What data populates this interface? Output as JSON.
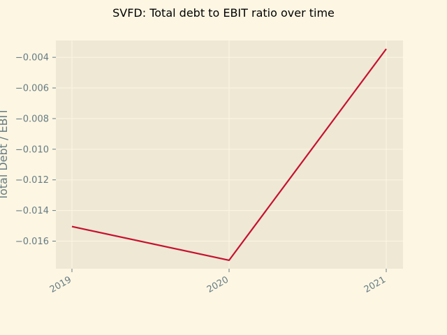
{
  "chart_data": {
    "type": "line",
    "title": "SVFD: Total debt to EBIT ratio over time",
    "xlabel": "",
    "ylabel": "Total Debt / EBIT",
    "categories": [
      "2019",
      "2020",
      "2021"
    ],
    "series": [
      {
        "values": [
          -0.01505,
          -0.01725,
          -0.00345
        ],
        "color": "#c7102e"
      }
    ],
    "ylim": [
      -0.0178,
      -0.0029
    ],
    "yticks": [
      -0.016,
      -0.014,
      -0.012,
      -0.01,
      -0.008,
      -0.006,
      -0.004
    ],
    "ytick_labels": [
      "−0.016",
      "−0.014",
      "−0.012",
      "−0.010",
      "−0.008",
      "−0.006",
      "−0.004"
    ],
    "grid": true,
    "colors": {
      "figure_bg": "#fdf6e3",
      "plot_bg": "#eee8d5",
      "grid": "#fdf6e3",
      "text": "#657b83"
    }
  }
}
